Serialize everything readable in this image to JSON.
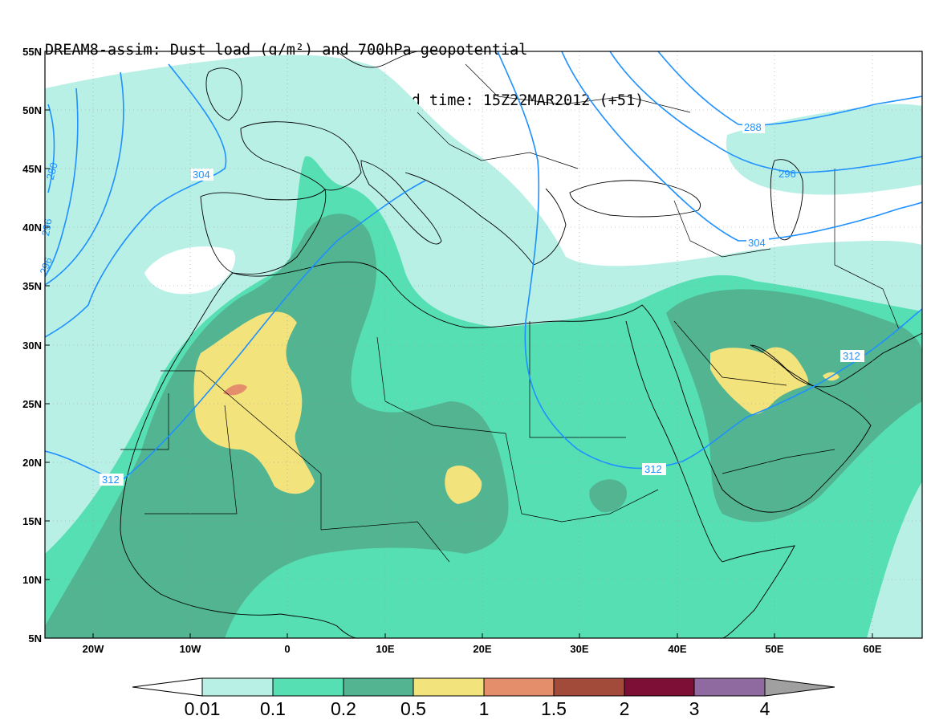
{
  "title": {
    "line1": "DREAM8-assim: Dust load (g/m²) and 700hPa geopotential",
    "line2": "Forecast base time: 12Z20MAR2012     valid time: 15Z22MAR2012 (+51)"
  },
  "map": {
    "lon_range": [
      -25,
      65
    ],
    "lat_range": [
      5,
      55
    ],
    "lat_ticks": [
      "55N",
      "50N",
      "45N",
      "40N",
      "35N",
      "30N",
      "25N",
      "20N",
      "15N",
      "10N",
      "5N"
    ],
    "lon_ticks": [
      "20W",
      "10W",
      "0",
      "10E",
      "20E",
      "30E",
      "40E",
      "50E",
      "60E"
    ],
    "colors": {
      "0.01": "#b9f0e6",
      "0.1": "#57dfb4",
      "0.2": "#52b490",
      "0.5": "#f2e37d",
      "1": "#e58e6b",
      "1.5": "#a24b3b",
      "2": "#7d0f36",
      "3": "#8e6aa0",
      "4": "#a0a0a0",
      "contour": "#1e90ff"
    },
    "contour_labels": [
      "280",
      "288",
      "296",
      "304",
      "312",
      "312",
      "312",
      "304",
      "296",
      "288",
      "296"
    ]
  },
  "colorbar": {
    "labels": [
      "0.01",
      "0.1",
      "0.2",
      "0.5",
      "1",
      "1.5",
      "2",
      "3",
      "4"
    ]
  }
}
